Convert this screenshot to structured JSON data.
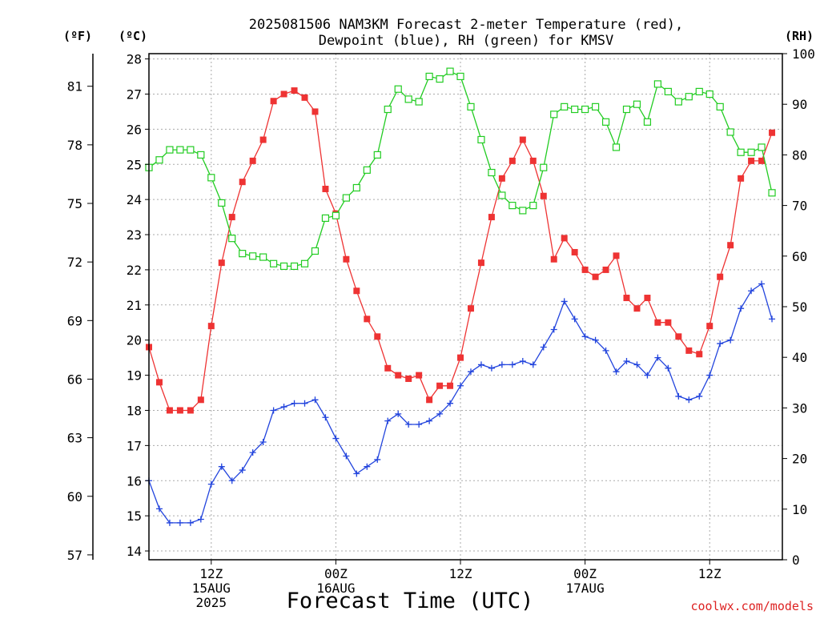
{
  "chart_data": {
    "type": "line",
    "title_line1": "2025081506 NAM3KM Forecast 2-meter Temperature (red),",
    "title_line2": "Dewpoint (blue), RH (green) for KMSV",
    "xlabel": "Forecast Time (UTC)",
    "credit": "coolwx.com/models",
    "unit_labels": {
      "fahrenheit": "(ºF)",
      "celsius": "(ºC)",
      "rh": "(RH)"
    },
    "grid": true,
    "x_range_hours": [
      0,
      61
    ],
    "x_ticks": [
      {
        "hour": 6,
        "label": "12Z",
        "date": "15AUG",
        "year": "2025"
      },
      {
        "hour": 18,
        "label": "00Z",
        "date": "16AUG",
        "year": ""
      },
      {
        "hour": 30,
        "label": "12Z",
        "date": "",
        "year": ""
      },
      {
        "hour": 42,
        "label": "00Z",
        "date": "17AUG",
        "year": ""
      },
      {
        "hour": 54,
        "label": "12Z",
        "date": "",
        "year": ""
      }
    ],
    "celsius_axis": {
      "range": [
        13.75,
        28.15
      ],
      "ticks": [
        14,
        15,
        16,
        17,
        18,
        19,
        20,
        21,
        22,
        23,
        24,
        25,
        26,
        27,
        28
      ]
    },
    "fahrenheit_axis": {
      "ticks": [
        57,
        60,
        63,
        66,
        69,
        72,
        75,
        78,
        81
      ]
    },
    "rh_axis": {
      "range": [
        0,
        100
      ],
      "ticks": [
        0,
        10,
        20,
        30,
        40,
        50,
        60,
        70,
        80,
        90,
        100
      ]
    },
    "series": [
      {
        "name": "2-meter Temperature",
        "color": "#ee3333",
        "marker": "filled-square",
        "axis": "celsius",
        "values": [
          19.8,
          18.8,
          18.0,
          18.0,
          18.0,
          18.3,
          20.4,
          22.2,
          23.5,
          24.5,
          25.1,
          25.7,
          26.8,
          27.0,
          27.1,
          26.9,
          26.5,
          24.3,
          23.6,
          22.3,
          21.4,
          20.6,
          20.1,
          19.2,
          19.0,
          18.9,
          19.0,
          18.3,
          18.7,
          18.7,
          19.5,
          20.9,
          22.2,
          23.5,
          24.6,
          25.1,
          25.7,
          25.1,
          24.1,
          22.3,
          22.9,
          22.5,
          22.0,
          21.8,
          22.0,
          22.4,
          21.2,
          20.9,
          21.2,
          20.5,
          20.5,
          20.1,
          19.7,
          19.6,
          20.4,
          21.8,
          22.7,
          24.6,
          25.1,
          25.1,
          25.9
        ]
      },
      {
        "name": "Dewpoint",
        "color": "#2244dd",
        "marker": "plus",
        "axis": "celsius",
        "values": [
          16.0,
          15.2,
          14.8,
          14.8,
          14.8,
          14.9,
          15.9,
          16.4,
          16.0,
          16.3,
          16.8,
          17.1,
          18.0,
          18.1,
          18.2,
          18.2,
          18.3,
          17.8,
          17.2,
          16.7,
          16.2,
          16.4,
          16.6,
          17.7,
          17.9,
          17.6,
          17.6,
          17.7,
          17.9,
          18.2,
          18.7,
          19.1,
          19.3,
          19.2,
          19.3,
          19.3,
          19.4,
          19.3,
          19.8,
          20.3,
          21.1,
          20.6,
          20.1,
          20.0,
          19.7,
          19.1,
          19.4,
          19.3,
          19.0,
          19.5,
          19.2,
          18.4,
          18.3,
          18.4,
          19.0,
          19.9,
          20.0,
          20.9,
          21.4,
          21.6,
          20.6
        ]
      },
      {
        "name": "RH",
        "color": "#22cc22",
        "marker": "open-square",
        "axis": "rh",
        "values": [
          77.5,
          79,
          81,
          81,
          81,
          80,
          75.5,
          70.5,
          63.5,
          60.5,
          60,
          59.8,
          58.5,
          58,
          58,
          58.5,
          61,
          67.5,
          68,
          71.5,
          73.5,
          77,
          80,
          89,
          93,
          91,
          90.5,
          95.5,
          95,
          96.5,
          95.5,
          89.5,
          83,
          76.5,
          72,
          70,
          69,
          70,
          77.5,
          88,
          89.5,
          89,
          89,
          89.5,
          86.5,
          81.5,
          89,
          90,
          86.5,
          94,
          92.5,
          90.5,
          91.5,
          92.5,
          92,
          89.5,
          84.5,
          80.5,
          80.5,
          81.5,
          72.5
        ]
      }
    ]
  }
}
